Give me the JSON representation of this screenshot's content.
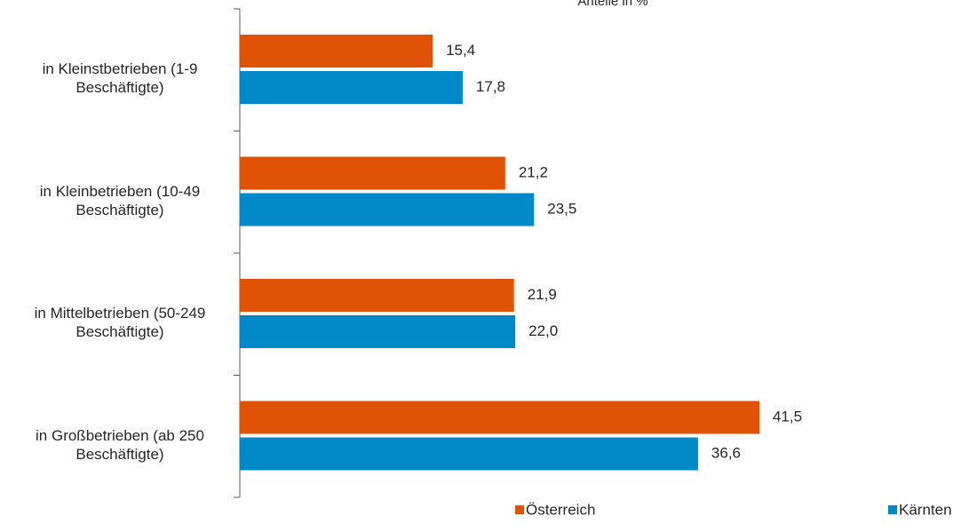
{
  "chart_data": {
    "type": "hbar",
    "title": "Anteile in %",
    "categories": [
      "in Kleinstbetrieben (1-9 Beschäftigte)",
      "in Kleinbetrieben (10-49 Beschäftigte)",
      "in Mittelbetrieben (50-249 Beschäftigte)",
      "in Großbetrieben (ab 250 Beschäftigte)"
    ],
    "series": [
      {
        "name": "Österreich",
        "color": "#e05206",
        "values": [
          15.4,
          21.2,
          21.9,
          41.5
        ],
        "value_labels": [
          "15,4",
          "21,2",
          "21,9",
          "41,5"
        ]
      },
      {
        "name": "Kärnten",
        "color": "#0088c9",
        "values": [
          17.8,
          23.5,
          22.0,
          36.6
        ],
        "value_labels": [
          "17,8",
          "23,5",
          "22,0",
          "36,6"
        ]
      }
    ],
    "xlim": [
      0,
      50
    ]
  }
}
